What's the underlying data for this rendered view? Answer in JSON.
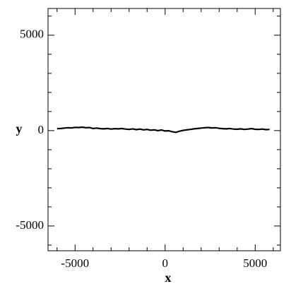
{
  "chart_data": {
    "type": "line",
    "title": "",
    "xlabel": "x",
    "ylabel": "y",
    "xlim": [
      -6500,
      6400
    ],
    "ylim": [
      -6300,
      6400
    ],
    "x_ticks": [
      {
        "value": -5000,
        "label": "-5000"
      },
      {
        "value": 0,
        "label": "0"
      },
      {
        "value": 5000,
        "label": "5000"
      }
    ],
    "y_ticks": [
      {
        "value": 5000,
        "label": "5000"
      },
      {
        "value": 0,
        "label": "0"
      },
      {
        "value": -5000,
        "label": "-5000"
      }
    ],
    "x_minor_step": 1000,
    "y_minor_step": 1000,
    "grid": false,
    "line_color": "#000000",
    "series": [
      {
        "x": [
          -6000,
          -5800,
          -5600,
          -5400,
          -5200,
          -5000,
          -4800,
          -4600,
          -4400,
          -4200,
          -4000,
          -3800,
          -3600,
          -3400,
          -3200,
          -3000,
          -2800,
          -2600,
          -2400,
          -2200,
          -2000,
          -1800,
          -1600,
          -1400,
          -1200,
          -1000,
          -800,
          -600,
          -400,
          -200,
          0,
          200,
          400,
          600,
          800,
          1000,
          1200,
          1400,
          1600,
          1800,
          2000,
          2200,
          2400,
          2600,
          2800,
          3000,
          3200,
          3400,
          3600,
          3800,
          4000,
          4200,
          4400,
          4600,
          4800,
          5000,
          5200,
          5400,
          5600,
          5800
        ],
        "y": [
          100,
          110,
          130,
          150,
          140,
          170,
          160,
          180,
          150,
          160,
          110,
          130,
          100,
          90,
          110,
          80,
          100,
          90,
          110,
          80,
          60,
          90,
          50,
          80,
          40,
          60,
          20,
          40,
          0,
          30,
          -20,
          -10,
          -60,
          -90,
          -30,
          10,
          40,
          60,
          90,
          110,
          130,
          150,
          160,
          140,
          150,
          120,
          100,
          90,
          110,
          80,
          70,
          90,
          60,
          80,
          100,
          70,
          60,
          80,
          50,
          60
        ]
      }
    ]
  }
}
